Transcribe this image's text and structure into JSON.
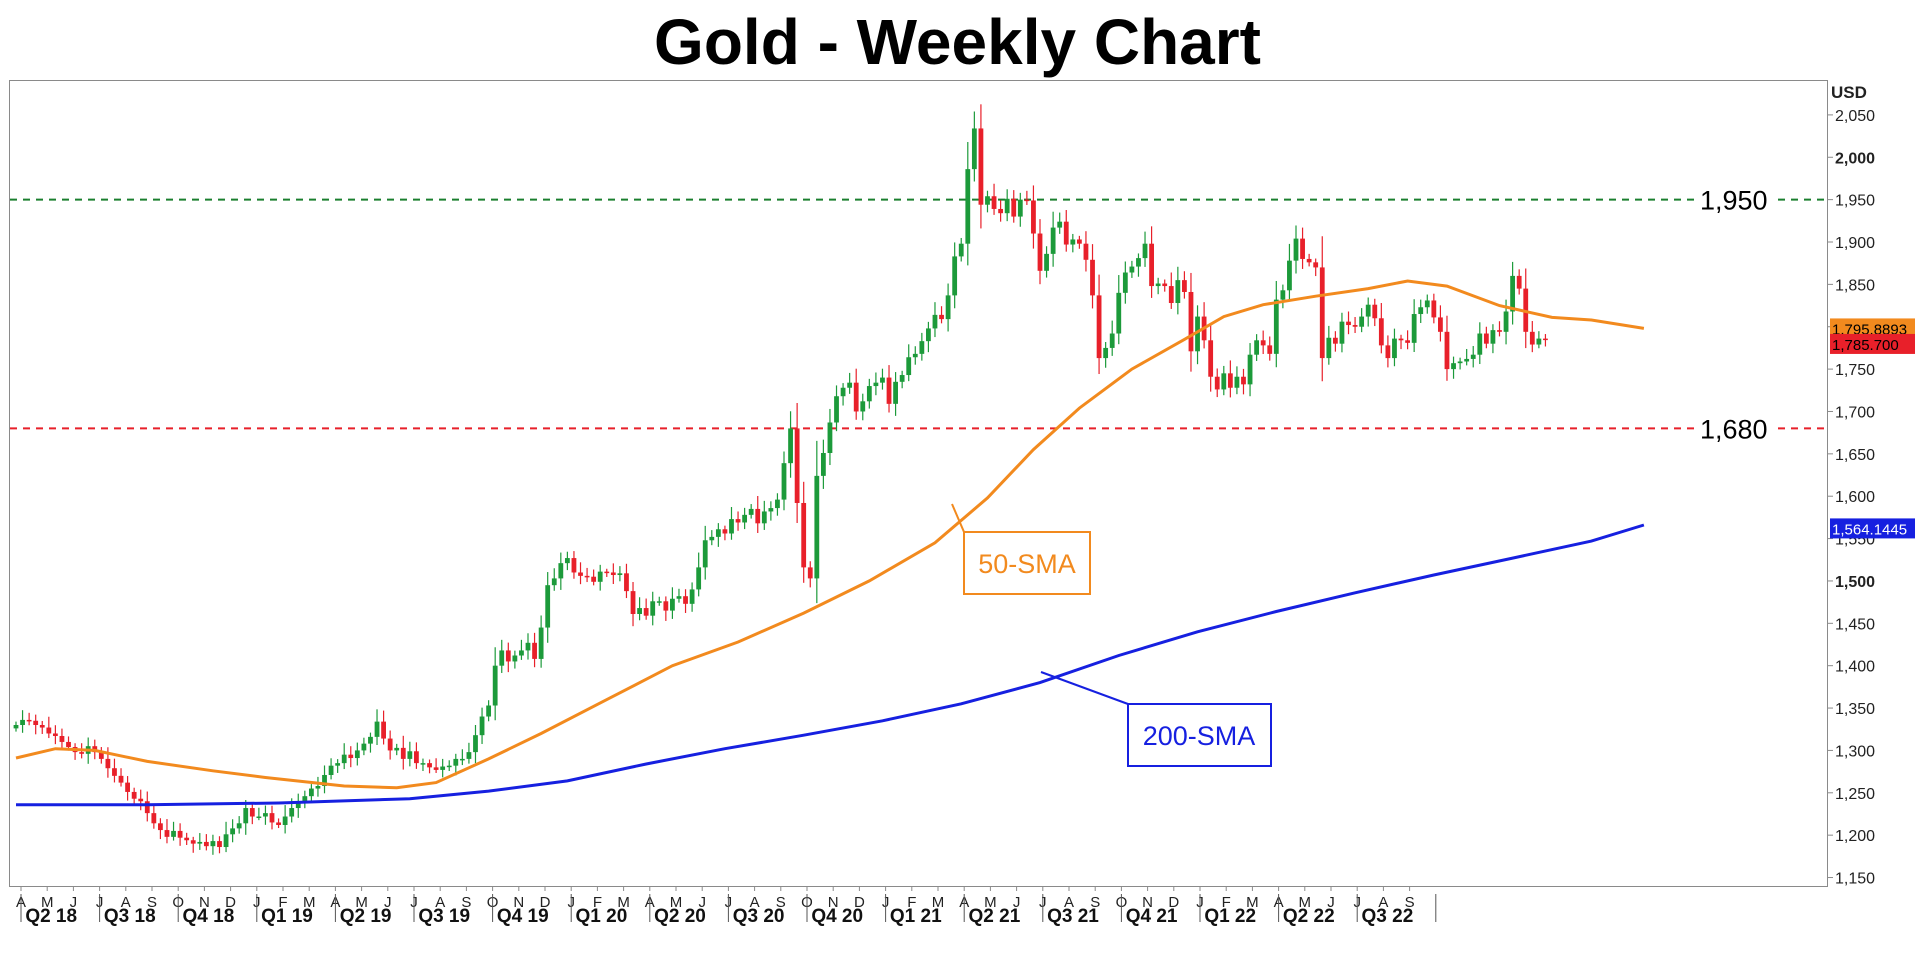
{
  "chart_data": {
    "type": "candlestick",
    "title": "Gold - Weekly Chart",
    "y_unit": "USD",
    "ylim": [
      1140,
      2090
    ],
    "y_ticks": [
      {
        "value": 2050,
        "label": "2,050",
        "bold": false
      },
      {
        "value": 2000,
        "label": "2,000",
        "bold": true
      },
      {
        "value": 1950,
        "label": "1,950",
        "bold": false
      },
      {
        "value": 1900,
        "label": "1,900",
        "bold": false
      },
      {
        "value": 1850,
        "label": "1,850",
        "bold": false
      },
      {
        "value": 1800,
        "label": "1,800",
        "bold": false
      },
      {
        "value": 1750,
        "label": "1,750",
        "bold": false
      },
      {
        "value": 1700,
        "label": "1,700",
        "bold": false
      },
      {
        "value": 1650,
        "label": "1,650",
        "bold": false
      },
      {
        "value": 1600,
        "label": "1,600",
        "bold": false
      },
      {
        "value": 1550,
        "label": "1,550",
        "bold": false
      },
      {
        "value": 1500,
        "label": "1,500",
        "bold": true
      },
      {
        "value": 1450,
        "label": "1,450",
        "bold": false
      },
      {
        "value": 1400,
        "label": "1,400",
        "bold": false
      },
      {
        "value": 1350,
        "label": "1,350",
        "bold": false
      },
      {
        "value": 1300,
        "label": "1,300",
        "bold": false
      },
      {
        "value": 1250,
        "label": "1,250",
        "bold": false
      },
      {
        "value": 1200,
        "label": "1,200",
        "bold": false
      },
      {
        "value": 1150,
        "label": "1,150",
        "bold": false
      }
    ],
    "x_months": [
      "A",
      "M",
      "J",
      "J",
      "A",
      "S",
      "O",
      "N",
      "D",
      "J",
      "F",
      "M",
      "A",
      "M",
      "J",
      "J",
      "A",
      "S",
      "O",
      "N",
      "D",
      "J",
      "F",
      "M",
      "A",
      "M",
      "J",
      "J",
      "A",
      "S",
      "O",
      "N",
      "D",
      "J",
      "F",
      "M",
      "A",
      "M",
      "J",
      "J",
      "A",
      "S",
      "O",
      "N",
      "D",
      "J",
      "F",
      "M",
      "A",
      "M",
      "J",
      "J",
      "A",
      "S"
    ],
    "x_quarters": [
      "Q2 18",
      "Q3 18",
      "Q4 18",
      "Q1 19",
      "Q2 19",
      "Q3 19",
      "Q4 19",
      "Q1 20",
      "Q2 20",
      "Q3 20",
      "Q4 20",
      "Q1 21",
      "Q2 21",
      "Q3 21",
      "Q4 21",
      "Q1 22",
      "Q2 22",
      "Q3 22"
    ],
    "reference_lines": [
      {
        "value": 1950,
        "label": "1,950",
        "color": "#1a7f2e",
        "style": "dashed"
      },
      {
        "value": 1680,
        "label": "1,680",
        "color": "#e8202a",
        "style": "dashed"
      }
    ],
    "series": [
      {
        "name": "50-SMA",
        "color": "#f28a1e",
        "last_value_label": "1,795.8893",
        "points": [
          [
            0,
            1291
          ],
          [
            6,
            1302
          ],
          [
            12,
            1300
          ],
          [
            20,
            1287
          ],
          [
            30,
            1276
          ],
          [
            38,
            1268
          ],
          [
            50,
            1258
          ],
          [
            58,
            1256
          ],
          [
            64,
            1262
          ],
          [
            72,
            1290
          ],
          [
            80,
            1320
          ],
          [
            90,
            1360
          ],
          [
            100,
            1400
          ],
          [
            110,
            1428
          ],
          [
            120,
            1462
          ],
          [
            130,
            1500
          ],
          [
            140,
            1545
          ],
          [
            148,
            1598
          ],
          [
            155,
            1655
          ],
          [
            162,
            1704
          ],
          [
            170,
            1750
          ],
          [
            178,
            1785
          ],
          [
            184,
            1812
          ],
          [
            190,
            1826
          ],
          [
            198,
            1836
          ],
          [
            206,
            1845
          ],
          [
            212,
            1854
          ],
          [
            218,
            1848
          ],
          [
            226,
            1825
          ],
          [
            234,
            1811
          ],
          [
            240,
            1808
          ],
          [
            248,
            1798
          ]
        ]
      },
      {
        "name": "200-SMA",
        "color": "#1620e0",
        "last_value_label": "1,564.1445",
        "points": [
          [
            0,
            1236
          ],
          [
            20,
            1236
          ],
          [
            40,
            1238
          ],
          [
            60,
            1243
          ],
          [
            72,
            1252
          ],
          [
            84,
            1264
          ],
          [
            96,
            1284
          ],
          [
            108,
            1302
          ],
          [
            120,
            1318
          ],
          [
            132,
            1335
          ],
          [
            144,
            1355
          ],
          [
            156,
            1380
          ],
          [
            168,
            1412
          ],
          [
            180,
            1440
          ],
          [
            192,
            1464
          ],
          [
            204,
            1486
          ],
          [
            216,
            1507
          ],
          [
            228,
            1527
          ],
          [
            240,
            1547
          ],
          [
            248,
            1566
          ]
        ]
      }
    ],
    "last_price": {
      "value": 1785.7,
      "label": "1,785.700",
      "color": "#e8202a"
    },
    "candles_close": [
      1330,
      1336,
      1335,
      1330,
      1327,
      1320,
      1317,
      1310,
      1304,
      1298,
      1296,
      1305,
      1298,
      1290,
      1279,
      1270,
      1262,
      1251,
      1243,
      1240,
      1226,
      1214,
      1206,
      1198,
      1205,
      1197,
      1194,
      1190,
      1192,
      1187,
      1193,
      1186,
      1201,
      1208,
      1214,
      1232,
      1222,
      1222,
      1226,
      1215,
      1212,
      1222,
      1232,
      1240,
      1246,
      1255,
      1258,
      1271,
      1282,
      1285,
      1295,
      1291,
      1300,
      1308,
      1316,
      1334,
      1314,
      1300,
      1303,
      1290,
      1299,
      1285,
      1285,
      1280,
      1277,
      1281,
      1282,
      1290,
      1290,
      1298,
      1318,
      1340,
      1353,
      1400,
      1418,
      1405,
      1412,
      1418,
      1427,
      1408,
      1445,
      1495,
      1503,
      1521,
      1527,
      1510,
      1506,
      1505,
      1499,
      1511,
      1510,
      1507,
      1509,
      1488,
      1461,
      1468,
      1459,
      1476,
      1476,
      1465,
      1479,
      1482,
      1473,
      1490,
      1516,
      1548,
      1552,
      1561,
      1556,
      1573,
      1569,
      1578,
      1585,
      1568,
      1582,
      1586,
      1596,
      1639,
      1680,
      1592,
      1516,
      1503,
      1624,
      1651,
      1687,
      1718,
      1728,
      1734,
      1700,
      1712,
      1730,
      1734,
      1740,
      1709,
      1735,
      1743,
      1764,
      1768,
      1783,
      1798,
      1814,
      1809,
      1837,
      1883,
      1898,
      1986,
      2034,
      1944,
      1954,
      1939,
      1934,
      1951,
      1930,
      1950,
      1949,
      1910,
      1866,
      1886,
      1917,
      1924,
      1897,
      1903,
      1898,
      1879,
      1837,
      1763,
      1775,
      1792,
      1840,
      1864,
      1871,
      1881,
      1898,
      1848,
      1851,
      1848,
      1828,
      1855,
      1841,
      1771,
      1812,
      1784,
      1741,
      1726,
      1745,
      1728,
      1741,
      1732,
      1767,
      1784,
      1778,
      1768,
      1832,
      1843,
      1878,
      1904,
      1880,
      1876,
      1870,
      1763,
      1787,
      1780,
      1806,
      1802,
      1800,
      1812,
      1826,
      1810,
      1778,
      1763,
      1786,
      1784,
      1781,
      1815,
      1823,
      1831,
      1811,
      1794,
      1750,
      1757,
      1759,
      1762,
      1767,
      1792,
      1780,
      1796,
      1794,
      1818,
      1860,
      1845,
      1794,
      1779,
      1786,
      1785
    ]
  },
  "callouts": {
    "sma50": {
      "text": "50-SMA",
      "color": "#f28a1e"
    },
    "sma200": {
      "text": "200-SMA",
      "color": "#1620e0"
    }
  },
  "colors": {
    "up": "#1c9a3a",
    "down": "#e8202a",
    "grid_dot": "#6b7bd6",
    "axis": "#8a8a8a"
  }
}
